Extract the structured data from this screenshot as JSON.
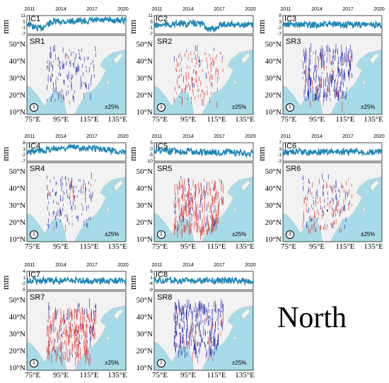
{
  "title": "North",
  "years": [
    "2011",
    "2014",
    "2017",
    "2020"
  ],
  "unit": "mm",
  "lat_labels": [
    "50°N",
    "40°N",
    "30°N",
    "20°N",
    "10°N"
  ],
  "lon_labels": [
    "75°E",
    "95°E",
    "115°E",
    "135°E"
  ],
  "scale_label": "±25%",
  "colors": {
    "series": "#1f86b4",
    "land": "#f2f2f2",
    "sea": "#a8dbe8",
    "positive": "#1a1aa8",
    "negative": "#e02020"
  },
  "panels": [
    {
      "ic": "IC1",
      "sr": "SR1",
      "yticks": [
        "11",
        "5",
        "-1",
        "-7"
      ],
      "badge": "①",
      "density": 0.35,
      "sign": "blue"
    },
    {
      "ic": "IC2",
      "sr": "SR2",
      "yticks": [
        "11",
        "5",
        "-1",
        "-7"
      ],
      "badge": "①",
      "density": 0.35,
      "sign": "red"
    },
    {
      "ic": "IC3",
      "sr": "SR3",
      "yticks": [
        "8",
        "3",
        "-2",
        "-7"
      ],
      "badge": "①",
      "density": 0.85,
      "sign": "blue"
    },
    {
      "ic": "IC4",
      "sr": "SR4",
      "yticks": [
        "8",
        "3",
        "-2",
        "-7"
      ],
      "badge": "①",
      "density": 0.3,
      "sign": "blue"
    },
    {
      "ic": "IC5",
      "sr": "SR5",
      "yticks": [
        "5",
        "0",
        "-5",
        "-10"
      ],
      "badge": "①",
      "density": 0.85,
      "sign": "red"
    },
    {
      "ic": "IC6",
      "sr": "SR6",
      "yticks": [
        "7",
        "3",
        "-1",
        "-3"
      ],
      "badge": "③",
      "density": 0.4,
      "sign": "mix"
    },
    {
      "ic": "IC7",
      "sr": "SR7",
      "yticks": [
        "4",
        "1",
        "-2",
        "-5"
      ],
      "badge": "①",
      "density": 0.9,
      "sign": "red"
    },
    {
      "ic": "IC8",
      "sr": "SR8",
      "yticks": [
        "6",
        "1",
        "-4",
        "-9"
      ],
      "badge": "①",
      "density": 0.9,
      "sign": "blue"
    }
  ]
}
